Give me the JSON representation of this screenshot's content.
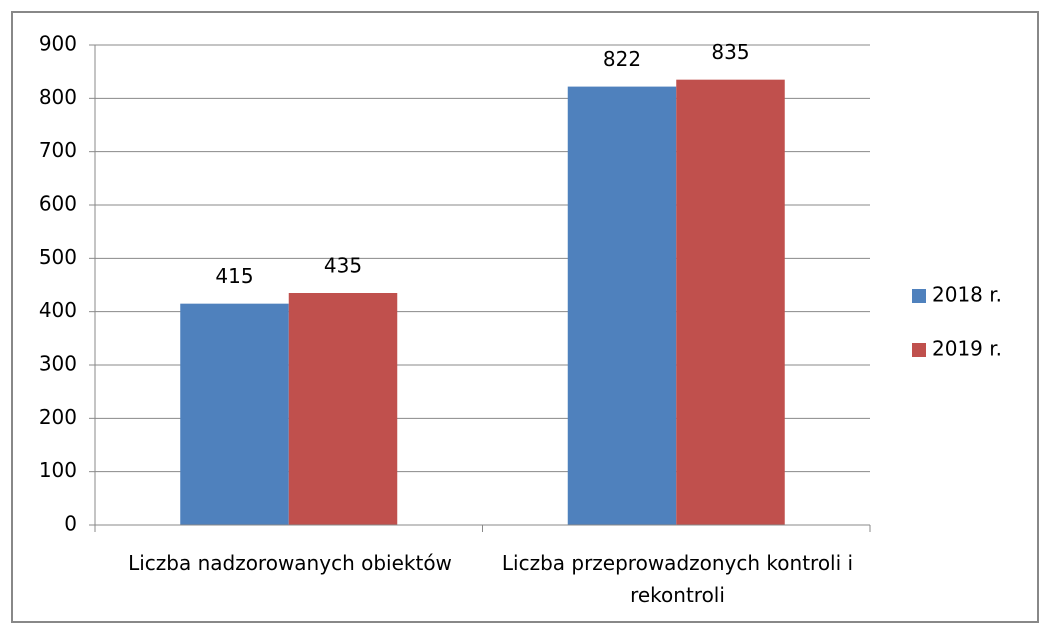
{
  "chart_data": {
    "type": "bar",
    "categories": [
      "Liczba nadzorowanych obiektów",
      "Liczba przeprowadzonych kontroli i rekontroli"
    ],
    "series": [
      {
        "name": "2018 r.",
        "color": "#4f81bd",
        "values": [
          415,
          822
        ]
      },
      {
        "name": "2019 r.",
        "color": "#c0504d",
        "values": [
          435,
          835
        ]
      }
    ],
    "ylim": [
      0,
      900
    ],
    "yticks": [
      0,
      100,
      200,
      300,
      400,
      500,
      600,
      700,
      800,
      900
    ],
    "grid": true,
    "legend": "right"
  }
}
